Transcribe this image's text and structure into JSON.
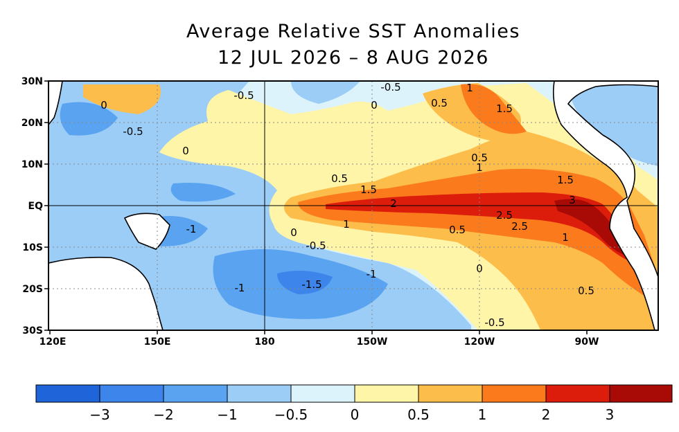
{
  "title": {
    "line1": "Average Relative SST Anomalies",
    "line2": "12 JUL 2026 – 8 AUG 2026"
  },
  "axes": {
    "lat_labels": [
      "30N",
      "20N",
      "10N",
      "EQ",
      "10S",
      "20S",
      "30S"
    ],
    "lon_labels": [
      "120E",
      "150E",
      "180",
      "150W",
      "120W",
      "90W"
    ]
  },
  "contour_labels": [
    {
      "text": "0"
    },
    {
      "text": "-0.5"
    },
    {
      "text": "-0.5"
    },
    {
      "text": "0"
    },
    {
      "text": "-0.5"
    },
    {
      "text": "0"
    },
    {
      "text": "1"
    },
    {
      "text": "0.5"
    },
    {
      "text": "1.5"
    },
    {
      "text": "0.5"
    },
    {
      "text": "1"
    },
    {
      "text": "0.5"
    },
    {
      "text": "1.5"
    },
    {
      "text": "1.5"
    },
    {
      "text": "2"
    },
    {
      "text": "3"
    },
    {
      "text": "2.5"
    },
    {
      "text": "2.5"
    },
    {
      "text": "1"
    },
    {
      "text": "0.5"
    },
    {
      "text": "1"
    },
    {
      "text": "0"
    },
    {
      "text": "-0.5"
    },
    {
      "text": "-1"
    },
    {
      "text": "-1"
    },
    {
      "text": "-1.5"
    },
    {
      "text": "-1"
    },
    {
      "text": "0"
    },
    {
      "text": "0.5"
    },
    {
      "text": "-0.5"
    }
  ],
  "colorbar": {
    "colors": [
      "#1f64d8",
      "#3d85ea",
      "#5aa3f0",
      "#9ccdf6",
      "#dcf3fb",
      "#fff5a8",
      "#fdbd4b",
      "#fb7a1c",
      "#dd1d0c",
      "#a80a06"
    ],
    "labels": [
      "−3",
      "−2",
      "−1",
      "−0.5",
      "0",
      "0.5",
      "1",
      "2",
      "3"
    ]
  },
  "colors": {
    "land": "#ffffff",
    "coast": "#000000",
    "grid": "#888888"
  }
}
